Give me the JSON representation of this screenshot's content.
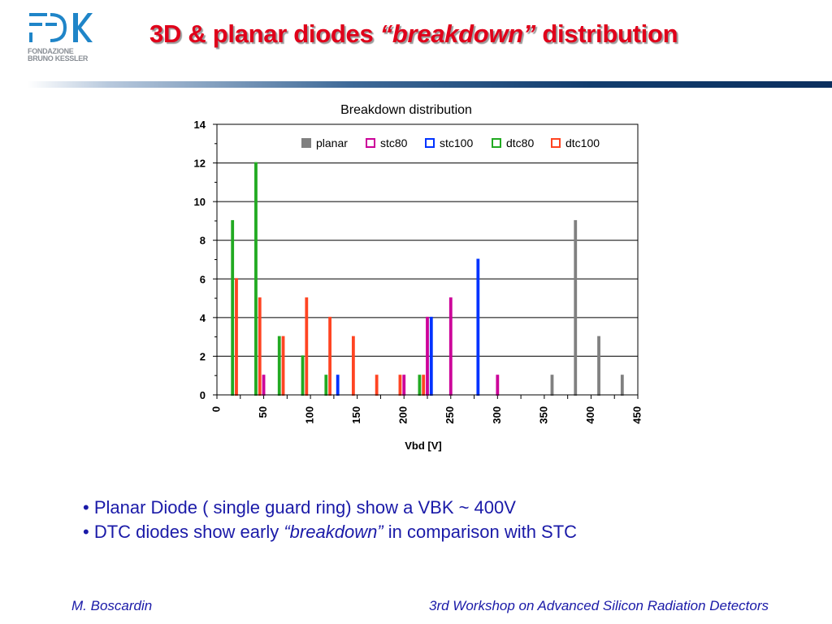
{
  "logo": {
    "line1": "FONDAZIONE",
    "line2": "BRUNO KESSLER",
    "color": "#1f85c8"
  },
  "title": {
    "part1": "3D & planar diodes ",
    "accent": "“breakdown”",
    "part2": " distribution"
  },
  "chart_data": {
    "type": "bar",
    "title": "Breakdown distribution",
    "xlabel": "Vbd [V]",
    "ylabel": "",
    "categories": [
      0,
      25,
      50,
      75,
      100,
      125,
      150,
      175,
      200,
      225,
      250,
      275,
      300,
      325,
      350,
      375,
      400,
      425,
      450
    ],
    "xticks": [
      "0",
      "50",
      "100",
      "150",
      "200",
      "250",
      "300",
      "350",
      "400",
      "450"
    ],
    "ylim": [
      0,
      14
    ],
    "yticks": [
      "0",
      "2",
      "4",
      "6",
      "8",
      "10",
      "12",
      "14"
    ],
    "grid": true,
    "legend_position": "top-right",
    "series": [
      {
        "name": "planar",
        "color": "#808080",
        "values": [
          0,
          0,
          0,
          0,
          0,
          0,
          0,
          0,
          0,
          0,
          0,
          0,
          0,
          0,
          1,
          9,
          3,
          1,
          0
        ]
      },
      {
        "name": "stc80",
        "color": "#cc0099",
        "values": [
          0,
          0,
          1,
          0,
          0,
          0,
          0,
          0,
          1,
          4,
          5,
          0,
          1,
          0,
          0,
          0,
          0,
          0,
          0
        ]
      },
      {
        "name": "stc100",
        "color": "#0033ff",
        "values": [
          0,
          0,
          0,
          0,
          0,
          1,
          0,
          0,
          0,
          4,
          0,
          7,
          0,
          0,
          0,
          0,
          0,
          0,
          0
        ]
      },
      {
        "name": "dtc80",
        "color": "#22aa22",
        "values": [
          0,
          9,
          12,
          3,
          2,
          1,
          0,
          0,
          0,
          1,
          0,
          0,
          0,
          0,
          0,
          0,
          0,
          0,
          0
        ]
      },
      {
        "name": "dtc100",
        "color": "#ff4422",
        "values": [
          0,
          6,
          5,
          3,
          5,
          4,
          3,
          1,
          1,
          1,
          0,
          0,
          0,
          0,
          0,
          0,
          0,
          0,
          0
        ]
      }
    ]
  },
  "bullets": {
    "b1": "• Planar Diode ( single guard ring) show a VBK ~ 400V",
    "b2_a": "• DTC diodes show early ",
    "b2_em": "“breakdown”",
    "b2_b": " in comparison with STC"
  },
  "footer": {
    "left": "M. Boscardin",
    "right": "3rd Workshop on Advanced Silicon Radiation Detectors"
  }
}
